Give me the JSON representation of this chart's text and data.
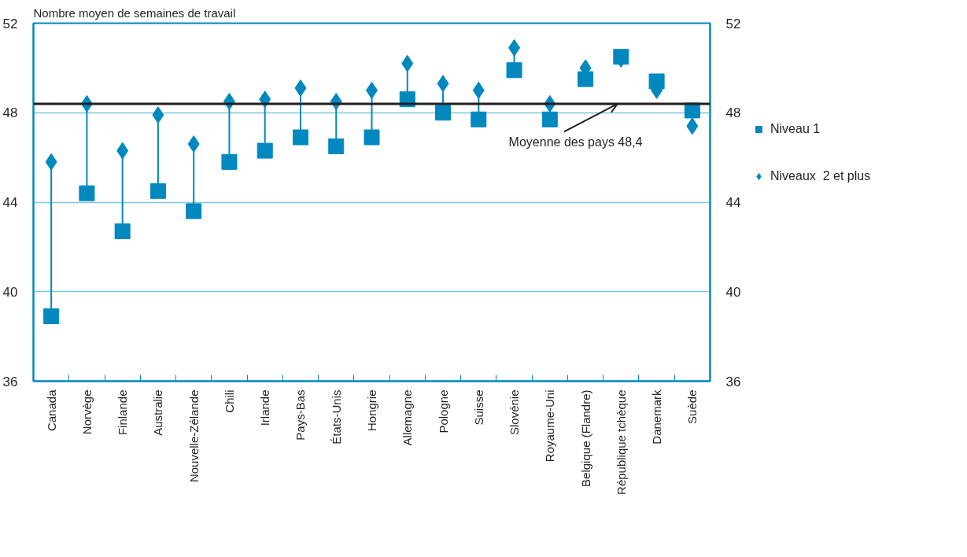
{
  "chart_data": {
    "type": "scatter",
    "ylabel": "Nombre moyen de semaines de travail",
    "categories": [
      "Canada",
      "Norvège",
      "Finlande",
      "Australie",
      "Nouvelle-Zélande",
      "Chili",
      "Irlande",
      "Pays-Bas",
      "États-Unis",
      "Hongrie",
      "Allemagne",
      "Pologne",
      "Suisse",
      "Slovénie",
      "Royaume-Uni",
      "Belgique (Flandre)",
      "République tchèque",
      "Danemark",
      "Suède"
    ],
    "series": [
      {
        "name": "Niveau 1",
        "color": "#0088bf",
        "marker": "square",
        "values": [
          38.9,
          44.4,
          42.7,
          44.5,
          43.6,
          45.8,
          46.3,
          46.9,
          46.5,
          46.9,
          48.6,
          48.0,
          47.7,
          49.9,
          47.7,
          49.5,
          50.5,
          49.4,
          48.1
        ]
      },
      {
        "name": "Niveaux  2 et plus",
        "color": "#0088bf",
        "marker": "diamond",
        "values": [
          45.8,
          48.4,
          46.3,
          47.9,
          46.6,
          48.5,
          48.6,
          49.1,
          48.5,
          49.0,
          50.2,
          49.3,
          49.0,
          50.9,
          48.4,
          50.0,
          50.4,
          49.0,
          47.4
        ]
      }
    ],
    "ylim": [
      36,
      52
    ],
    "yticks": [
      36,
      40,
      44,
      48,
      52
    ],
    "y2lim": [
      36,
      52
    ],
    "y2ticks": [
      36,
      40,
      44,
      48,
      52
    ],
    "grid": "y",
    "legend": "right",
    "ref_lines": [
      {
        "axis": "y",
        "value": 48.4,
        "label": "Moyenne des pays 48,4",
        "color": "#231f20"
      }
    ]
  }
}
